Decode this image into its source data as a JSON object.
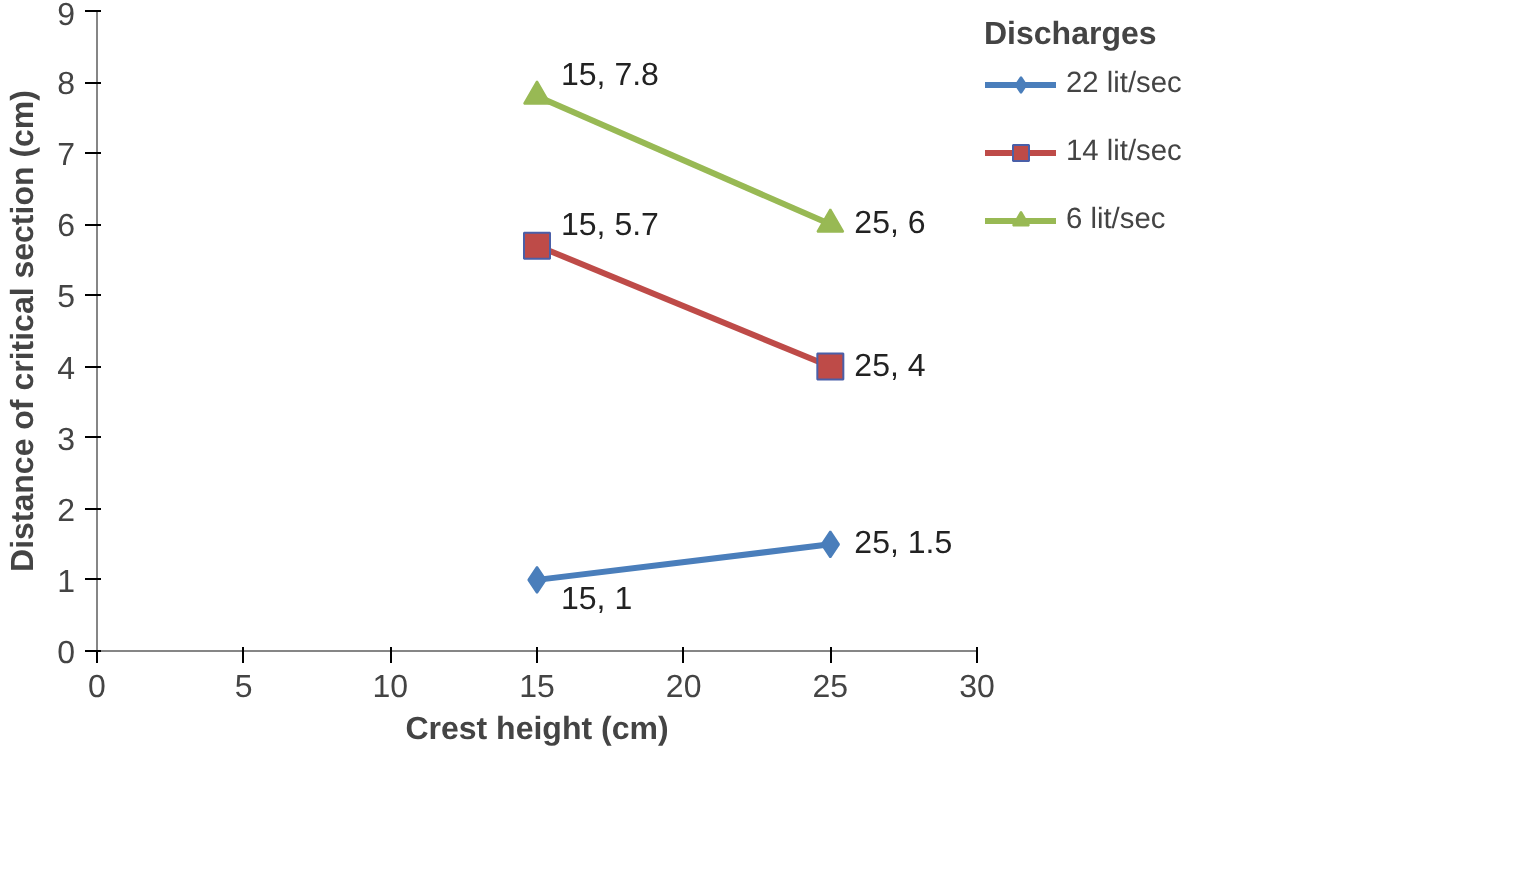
{
  "chart_data": {
    "type": "line",
    "xlabel": "Crest height (cm)",
    "ylabel": "Distance of critical section (cm)",
    "legend_title": "Discharges",
    "x": [
      15,
      25
    ],
    "series": [
      {
        "name": "22 lit/sec",
        "color": "#4a7ebb",
        "values": [
          1,
          1.5
        ],
        "marker": "diamond",
        "value_labels": [
          "15, 1",
          "25, 1.5"
        ]
      },
      {
        "name": "14 lit/sec",
        "color": "#be4b48",
        "values": [
          5.7,
          4
        ],
        "marker": "square",
        "value_labels": [
          "15, 5.7",
          "25, 4"
        ]
      },
      {
        "name": "6 lit/sec",
        "color": "#98b954",
        "values": [
          7.8,
          6
        ],
        "marker": "triangle",
        "value_labels": [
          "15, 7.8",
          "25, 6"
        ]
      }
    ],
    "xlim": [
      0,
      30
    ],
    "xticks": [
      0,
      5,
      10,
      15,
      20,
      25,
      30
    ],
    "ylim": [
      0,
      9
    ],
    "yticks": [
      0,
      1,
      2,
      3,
      4,
      5,
      6,
      7,
      8,
      9
    ],
    "grid": false,
    "legend": "right",
    "line_style": "solid"
  }
}
